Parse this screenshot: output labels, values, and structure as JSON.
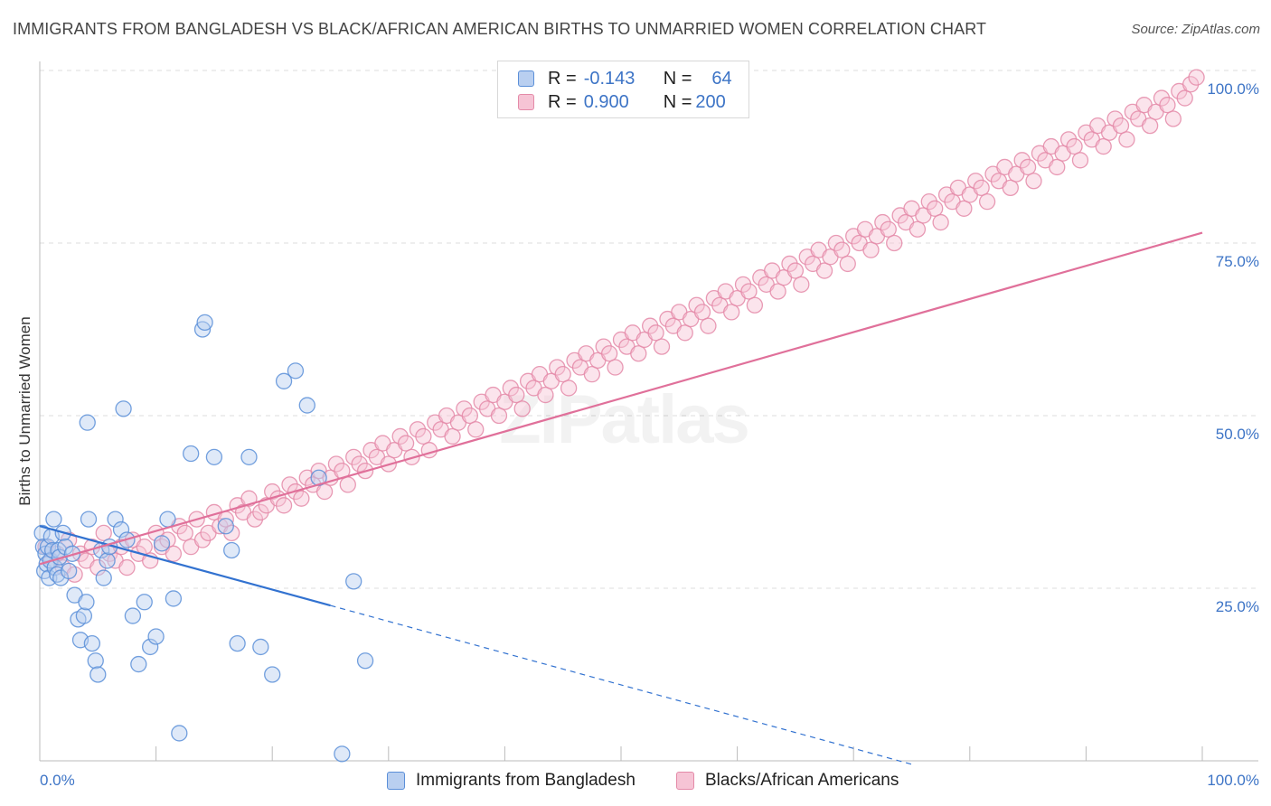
{
  "header": {
    "title": "IMMIGRANTS FROM BANGLADESH VS BLACK/AFRICAN AMERICAN BIRTHS TO UNMARRIED WOMEN CORRELATION CHART",
    "source": "Source: ZipAtlas.com"
  },
  "watermark": "ZIPatlas",
  "colors": {
    "blue": "#5b8fd8",
    "blue_fill": "#b9cff0",
    "blue_line": "#3272d0",
    "pink": "#e48aa8",
    "pink_fill": "#f6c4d5",
    "pink_line": "#e0709a",
    "tick_text": "#3d74c6"
  },
  "legend": {
    "rows": [
      {
        "r_label": "R =",
        "r_value": "-0.143",
        "n_label": "N =",
        "n_value": "64",
        "color": "#5b8fd8"
      },
      {
        "r_label": "R =",
        "r_value": "0.900",
        "n_label": "N =",
        "n_value": "200",
        "color": "#e48aa8"
      }
    ]
  },
  "bottom_legend": [
    {
      "label": "Immigrants from Bangladesh",
      "color": "#5b8fd8"
    },
    {
      "label": "Blacks/African Americans",
      "color": "#e48aa8"
    }
  ],
  "chart_data": {
    "type": "scatter",
    "title": "IMMIGRANTS FROM BANGLADESH VS BLACK/AFRICAN AMERICAN BIRTHS TO UNMARRIED WOMEN CORRELATION CHART",
    "xlabel": "",
    "ylabel": "Births to Unmarried Women",
    "xlim": [
      0,
      100
    ],
    "ylim": [
      0,
      100
    ],
    "x_tick_labels": [
      "0.0%",
      "100.0%"
    ],
    "y_tick_labels": [
      "25.0%",
      "50.0%",
      "75.0%",
      "100.0%"
    ],
    "y_ticks": [
      25,
      50,
      75,
      100
    ],
    "grid": true,
    "legend_position": "top-center",
    "series": [
      {
        "name": "Immigrants from Bangladesh",
        "trend": {
          "x0": 0,
          "y0": 34,
          "x1": 25,
          "y1": 22.5,
          "dashed_to_x": 75
        },
        "points": [
          [
            0.2,
            33
          ],
          [
            0.3,
            31
          ],
          [
            0.4,
            27.5
          ],
          [
            0.5,
            30
          ],
          [
            0.6,
            28.5
          ],
          [
            0.7,
            31
          ],
          [
            0.8,
            26.5
          ],
          [
            0.9,
            29
          ],
          [
            1.0,
            32.5
          ],
          [
            1.1,
            30.5
          ],
          [
            1.2,
            35
          ],
          [
            1.3,
            28
          ],
          [
            1.5,
            27
          ],
          [
            1.6,
            30.5
          ],
          [
            1.7,
            29.5
          ],
          [
            1.8,
            26.5
          ],
          [
            2.0,
            33
          ],
          [
            2.2,
            31
          ],
          [
            2.5,
            27.5
          ],
          [
            2.8,
            30
          ],
          [
            3.0,
            24
          ],
          [
            3.3,
            20.5
          ],
          [
            3.5,
            17.5
          ],
          [
            3.8,
            21
          ],
          [
            4.0,
            23
          ],
          [
            4.2,
            35
          ],
          [
            4.5,
            17
          ],
          [
            4.8,
            14.5
          ],
          [
            5.0,
            12.5
          ],
          [
            5.3,
            30.5
          ],
          [
            5.5,
            26.5
          ],
          [
            5.8,
            29
          ],
          [
            6.0,
            31
          ],
          [
            6.5,
            35
          ],
          [
            7.0,
            33.5
          ],
          [
            7.5,
            32
          ],
          [
            8.0,
            21
          ],
          [
            8.5,
            14
          ],
          [
            9.0,
            23
          ],
          [
            9.5,
            16.5
          ],
          [
            10.0,
            18
          ],
          [
            10.5,
            31.5
          ],
          [
            11.0,
            35
          ],
          [
            11.5,
            23.5
          ],
          [
            12.0,
            4
          ],
          [
            13.0,
            44.5
          ],
          [
            14.0,
            62.5
          ],
          [
            14.2,
            63.5
          ],
          [
            15.0,
            44
          ],
          [
            16.0,
            34
          ],
          [
            16.5,
            30.5
          ],
          [
            17.0,
            17
          ],
          [
            18.0,
            44
          ],
          [
            19.0,
            16.5
          ],
          [
            20.0,
            12.5
          ],
          [
            21.0,
            55
          ],
          [
            22.0,
            56.5
          ],
          [
            23.0,
            51.5
          ],
          [
            24.0,
            41
          ],
          [
            26.0,
            1
          ],
          [
            27.0,
            26
          ],
          [
            28.0,
            14.5
          ],
          [
            4.1,
            49
          ],
          [
            7.2,
            51
          ]
        ]
      },
      {
        "name": "Blacks/African Americans",
        "trend": {
          "x0": 0,
          "y0": 28.5,
          "x1": 100,
          "y1": 76.5
        },
        "points": [
          [
            0.5,
            31
          ],
          [
            1.0,
            29
          ],
          [
            1.5,
            30
          ],
          [
            2.0,
            28
          ],
          [
            2.5,
            32
          ],
          [
            3.0,
            27
          ],
          [
            3.5,
            30
          ],
          [
            4.0,
            29
          ],
          [
            4.5,
            31
          ],
          [
            5.0,
            28
          ],
          [
            5.5,
            33
          ],
          [
            6.0,
            30
          ],
          [
            6.5,
            29
          ],
          [
            7.0,
            31
          ],
          [
            7.5,
            28
          ],
          [
            8.0,
            32
          ],
          [
            8.5,
            30
          ],
          [
            9.0,
            31
          ],
          [
            9.5,
            29
          ],
          [
            10.0,
            33
          ],
          [
            10.5,
            31
          ],
          [
            11.0,
            32
          ],
          [
            11.5,
            30
          ],
          [
            12.0,
            34
          ],
          [
            12.5,
            33
          ],
          [
            13.0,
            31
          ],
          [
            13.5,
            35
          ],
          [
            14.0,
            32
          ],
          [
            14.5,
            33
          ],
          [
            15.0,
            36
          ],
          [
            15.5,
            34
          ],
          [
            16.0,
            35
          ],
          [
            16.5,
            33
          ],
          [
            17.0,
            37
          ],
          [
            17.5,
            36
          ],
          [
            18.0,
            38
          ],
          [
            18.5,
            35
          ],
          [
            19.0,
            36
          ],
          [
            19.5,
            37
          ],
          [
            20.0,
            39
          ],
          [
            20.5,
            38
          ],
          [
            21.0,
            37
          ],
          [
            21.5,
            40
          ],
          [
            22.0,
            39
          ],
          [
            22.5,
            38
          ],
          [
            23.0,
            41
          ],
          [
            23.5,
            40
          ],
          [
            24.0,
            42
          ],
          [
            24.5,
            39
          ],
          [
            25.0,
            41
          ],
          [
            25.5,
            43
          ],
          [
            26.0,
            42
          ],
          [
            26.5,
            40
          ],
          [
            27.0,
            44
          ],
          [
            27.5,
            43
          ],
          [
            28.0,
            42
          ],
          [
            28.5,
            45
          ],
          [
            29.0,
            44
          ],
          [
            29.5,
            46
          ],
          [
            30.0,
            43
          ],
          [
            30.5,
            45
          ],
          [
            31.0,
            47
          ],
          [
            31.5,
            46
          ],
          [
            32.0,
            44
          ],
          [
            32.5,
            48
          ],
          [
            33.0,
            47
          ],
          [
            33.5,
            45
          ],
          [
            34.0,
            49
          ],
          [
            34.5,
            48
          ],
          [
            35.0,
            50
          ],
          [
            35.5,
            47
          ],
          [
            36.0,
            49
          ],
          [
            36.5,
            51
          ],
          [
            37.0,
            50
          ],
          [
            37.5,
            48
          ],
          [
            38.0,
            52
          ],
          [
            38.5,
            51
          ],
          [
            39.0,
            53
          ],
          [
            39.5,
            50
          ],
          [
            40.0,
            52
          ],
          [
            40.5,
            54
          ],
          [
            41.0,
            53
          ],
          [
            41.5,
            51
          ],
          [
            42.0,
            55
          ],
          [
            42.5,
            54
          ],
          [
            43.0,
            56
          ],
          [
            43.5,
            53
          ],
          [
            44.0,
            55
          ],
          [
            44.5,
            57
          ],
          [
            45.0,
            56
          ],
          [
            45.5,
            54
          ],
          [
            46.0,
            58
          ],
          [
            46.5,
            57
          ],
          [
            47.0,
            59
          ],
          [
            47.5,
            56
          ],
          [
            48.0,
            58
          ],
          [
            48.5,
            60
          ],
          [
            49.0,
            59
          ],
          [
            49.5,
            57
          ],
          [
            50.0,
            61
          ],
          [
            50.5,
            60
          ],
          [
            51.0,
            62
          ],
          [
            51.5,
            59
          ],
          [
            52.0,
            61
          ],
          [
            52.5,
            63
          ],
          [
            53.0,
            62
          ],
          [
            53.5,
            60
          ],
          [
            54.0,
            64
          ],
          [
            54.5,
            63
          ],
          [
            55.0,
            65
          ],
          [
            55.5,
            62
          ],
          [
            56.0,
            64
          ],
          [
            56.5,
            66
          ],
          [
            57.0,
            65
          ],
          [
            57.5,
            63
          ],
          [
            58.0,
            67
          ],
          [
            58.5,
            66
          ],
          [
            59.0,
            68
          ],
          [
            59.5,
            65
          ],
          [
            60.0,
            67
          ],
          [
            60.5,
            69
          ],
          [
            61.0,
            68
          ],
          [
            61.5,
            66
          ],
          [
            62.0,
            70
          ],
          [
            62.5,
            69
          ],
          [
            63.0,
            71
          ],
          [
            63.5,
            68
          ],
          [
            64.0,
            70
          ],
          [
            64.5,
            72
          ],
          [
            65.0,
            71
          ],
          [
            65.5,
            69
          ],
          [
            66.0,
            73
          ],
          [
            66.5,
            72
          ],
          [
            67.0,
            74
          ],
          [
            67.5,
            71
          ],
          [
            68.0,
            73
          ],
          [
            68.5,
            75
          ],
          [
            69.0,
            74
          ],
          [
            69.5,
            72
          ],
          [
            70.0,
            76
          ],
          [
            70.5,
            75
          ],
          [
            71.0,
            77
          ],
          [
            71.5,
            74
          ],
          [
            72.0,
            76
          ],
          [
            72.5,
            78
          ],
          [
            73.0,
            77
          ],
          [
            73.5,
            75
          ],
          [
            74.0,
            79
          ],
          [
            74.5,
            78
          ],
          [
            75.0,
            80
          ],
          [
            75.5,
            77
          ],
          [
            76.0,
            79
          ],
          [
            76.5,
            81
          ],
          [
            77.0,
            80
          ],
          [
            77.5,
            78
          ],
          [
            78.0,
            82
          ],
          [
            78.5,
            81
          ],
          [
            79.0,
            83
          ],
          [
            79.5,
            80
          ],
          [
            80.0,
            82
          ],
          [
            80.5,
            84
          ],
          [
            81.0,
            83
          ],
          [
            81.5,
            81
          ],
          [
            82.0,
            85
          ],
          [
            82.5,
            84
          ],
          [
            83.0,
            86
          ],
          [
            83.5,
            83
          ],
          [
            84.0,
            85
          ],
          [
            84.5,
            87
          ],
          [
            85.0,
            86
          ],
          [
            85.5,
            84
          ],
          [
            86.0,
            88
          ],
          [
            86.5,
            87
          ],
          [
            87.0,
            89
          ],
          [
            87.5,
            86
          ],
          [
            88.0,
            88
          ],
          [
            88.5,
            90
          ],
          [
            89.0,
            89
          ],
          [
            89.5,
            87
          ],
          [
            90.0,
            91
          ],
          [
            90.5,
            90
          ],
          [
            91.0,
            92
          ],
          [
            91.5,
            89
          ],
          [
            92.0,
            91
          ],
          [
            92.5,
            93
          ],
          [
            93.0,
            92
          ],
          [
            93.5,
            90
          ],
          [
            94.0,
            94
          ],
          [
            94.5,
            93
          ],
          [
            95.0,
            95
          ],
          [
            95.5,
            92
          ],
          [
            96.0,
            94
          ],
          [
            96.5,
            96
          ],
          [
            97.0,
            95
          ],
          [
            97.5,
            93
          ],
          [
            98.0,
            97
          ],
          [
            98.5,
            96
          ],
          [
            99.0,
            98
          ],
          [
            99.5,
            99
          ]
        ]
      }
    ]
  }
}
